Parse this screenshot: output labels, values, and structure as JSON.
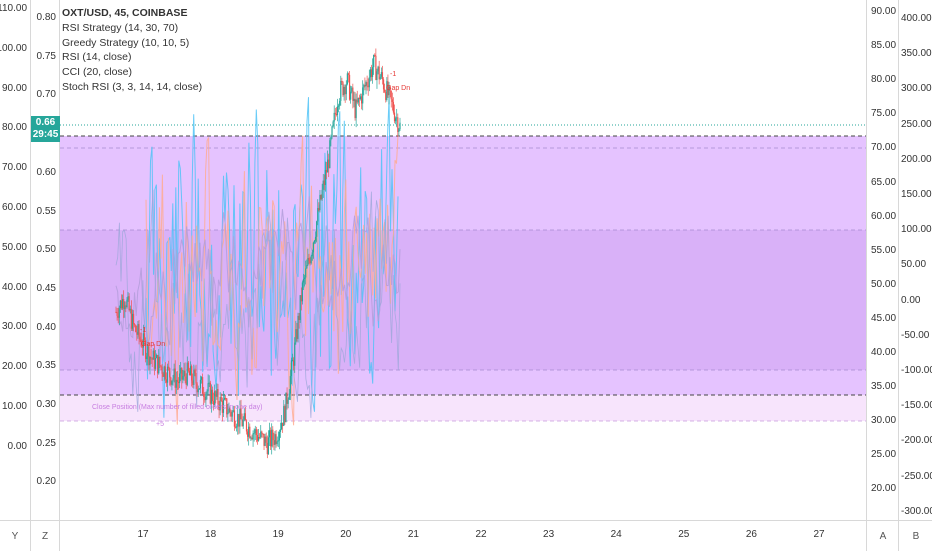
{
  "legend": {
    "symbol_line": "OXT/USD, 45, COINBASE",
    "rsi_strategy": "RSI Strategy (14, 30, 70)",
    "greedy_strategy": "Greedy Strategy (10, 10, 5)",
    "rsi": "RSI (14, close)",
    "cci": "CCI (20, close)",
    "stoch_rsi": "Stoch RSI (3, 3, 14, 14, close)"
  },
  "price_tag": {
    "price": "0.66",
    "countdown": "29:45"
  },
  "axes": {
    "left_outer_ticks": [
      "110.00",
      "100.00",
      "90.00",
      "80.00",
      "70.00",
      "60.00",
      "50.00",
      "40.00",
      "30.00",
      "20.00",
      "10.00",
      "0.00"
    ],
    "left_inner_ticks": [
      "0.80",
      "0.75",
      "0.70",
      "0.65",
      "0.60",
      "0.55",
      "0.50",
      "0.45",
      "0.40",
      "0.35",
      "0.30",
      "0.25",
      "0.20"
    ],
    "right_inner_ticks": [
      "90.00",
      "85.00",
      "80.00",
      "75.00",
      "70.00",
      "65.00",
      "60.00",
      "55.00",
      "50.00",
      "45.00",
      "40.00",
      "35.00",
      "30.00",
      "25.00",
      "20.00"
    ],
    "right_outer_ticks": [
      "400.00",
      "350.00",
      "300.00",
      "250.00",
      "200.00",
      "150.00",
      "100.00",
      "50.00",
      "0.00",
      "-50.00",
      "-100.00",
      "-150.00",
      "-200.00",
      "-250.00",
      "-300.00"
    ],
    "time_ticks": [
      "17",
      "18",
      "19",
      "20",
      "21",
      "22",
      "23",
      "24",
      "25",
      "26",
      "27"
    ]
  },
  "corner_labels": {
    "y": "Y",
    "z": "Z",
    "a": "A",
    "b": "B"
  },
  "annotations": {
    "close_position": "Close Position (Max number of filled orders in one day)",
    "gap_label": "Gap Dn",
    "minus_one": "-1",
    "plus_five": "+5"
  },
  "colors": {
    "up": "#26a69a",
    "down": "#ef5350",
    "band_purple": "#cc88ff",
    "band_pink": "#e8b3f5",
    "rsi_line": "#b39ddb",
    "stoch_k": "#4fc3f7",
    "stoch_d": "#ffab91",
    "price_line": "#26a69a"
  },
  "chart_data": {
    "type": "candlestick",
    "symbol": "OXT/USD",
    "interval": "45",
    "exchange": "COINBASE",
    "x_range": [
      "16.6",
      "20.8"
    ],
    "price_range": [
      0.2,
      0.8
    ],
    "last_price": 0.66,
    "close_approx": [
      0.42,
      0.44,
      0.4,
      0.38,
      0.36,
      0.35,
      0.34,
      0.33,
      0.34,
      0.33,
      0.32,
      0.31,
      0.3,
      0.29,
      0.28,
      0.27,
      0.26,
      0.25,
      0.26,
      0.29,
      0.36,
      0.45,
      0.5,
      0.56,
      0.62,
      0.7,
      0.72,
      0.68,
      0.71,
      0.74,
      0.72,
      0.69,
      0.66
    ]
  }
}
